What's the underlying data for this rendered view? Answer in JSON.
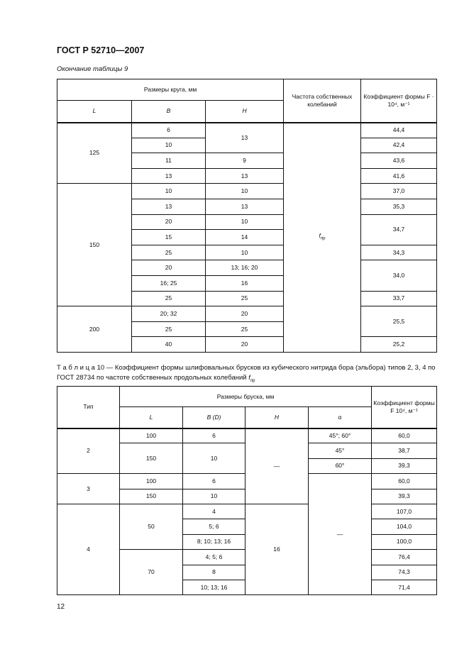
{
  "header": {
    "title": "ГОСТ Р 52710—2007"
  },
  "table9": {
    "caption": "Окончание таблицы 9",
    "header_rows": [
      [
        {
          "t": "Размеры круга, мм",
          "cs": 3
        },
        {
          "t": "Частота собственных колебаний",
          "rs": 2
        },
        {
          "t": "Коэффициент формы F · 10⁴, м⁻¹",
          "rs": 2
        }
      ],
      [
        {
          "t": "L",
          "it": true
        },
        {
          "t": "B",
          "it": true
        },
        {
          "t": "H",
          "it": true
        }
      ]
    ],
    "rows": [
      [
        {
          "t": "125",
          "rs": 4
        },
        {
          "t": "6"
        },
        {
          "t": "13",
          "rs": 2
        },
        {
          "t": "f",
          "sub": "пр",
          "it": true,
          "rs": 15
        },
        {
          "t": "44,4"
        }
      ],
      [
        {
          "t": "10"
        },
        {
          "t": "42,4"
        }
      ],
      [
        {
          "t": "11"
        },
        {
          "t": "9"
        },
        {
          "t": "43,6"
        }
      ],
      [
        {
          "t": "13"
        },
        {
          "t": "13"
        },
        {
          "t": "41,6"
        }
      ],
      [
        {
          "t": "150",
          "rs": 8
        },
        {
          "t": "10"
        },
        {
          "t": "10"
        },
        {
          "t": "37,0"
        }
      ],
      [
        {
          "t": "13"
        },
        {
          "t": "13"
        },
        {
          "t": "35,3"
        }
      ],
      [
        {
          "t": "20"
        },
        {
          "t": "10"
        },
        {
          "t": "34,7",
          "rs": 2
        }
      ],
      [
        {
          "t": "15"
        },
        {
          "t": "14"
        }
      ],
      [
        {
          "t": "25"
        },
        {
          "t": "10"
        },
        {
          "t": "34,3"
        }
      ],
      [
        {
          "t": "20"
        },
        {
          "t": "13; 16; 20"
        },
        {
          "t": "34,0",
          "rs": 2
        }
      ],
      [
        {
          "t": "16; 25"
        },
        {
          "t": "16"
        }
      ],
      [
        {
          "t": "25"
        },
        {
          "t": "25"
        },
        {
          "t": "33,7"
        }
      ],
      [
        {
          "t": "200",
          "rs": 3
        },
        {
          "t": "20; 32"
        },
        {
          "t": "20"
        },
        {
          "t": "25,5",
          "rs": 2
        }
      ],
      [
        {
          "t": "25"
        },
        {
          "t": "25"
        }
      ],
      [
        {
          "t": "40"
        },
        {
          "t": "20"
        },
        {
          "t": "25,2"
        }
      ]
    ]
  },
  "table10": {
    "caption": "Т а б л и ц а  10 — Коэффициент формы шлифовальных брусков из кубического нитрида бора (эльбора) типов 2, 3, 4 по ГОСТ 28734 по частоте собственных продольных колебаний ",
    "caption_symbol": "f",
    "caption_sub": "пр",
    "header_rows": [
      [
        {
          "t": "Тип",
          "rs": 2
        },
        {
          "t": "Размеры бруска, мм",
          "cs": 4
        },
        {
          "t": "Коэффициент формы F  10⁴, м⁻¹",
          "rs": 2
        }
      ],
      [
        {
          "t": "L",
          "it": true
        },
        {
          "t": "B (D)",
          "it": true
        },
        {
          "t": "H",
          "it": true
        },
        {
          "t": "α"
        }
      ]
    ],
    "rows": [
      [
        {
          "t": "2",
          "rs": 3
        },
        {
          "t": "100"
        },
        {
          "t": "6"
        },
        {
          "t": "—",
          "rs": 5
        },
        {
          "t": "45°; 60°"
        },
        {
          "t": "60,0"
        }
      ],
      [
        {
          "t": "150",
          "rs": 2
        },
        {
          "t": "10",
          "rs": 2
        },
        {
          "t": "45°"
        },
        {
          "t": "38,7"
        }
      ],
      [
        {
          "t": "60°"
        },
        {
          "t": "39,3"
        }
      ],
      [
        {
          "t": "3",
          "rs": 2
        },
        {
          "t": "100"
        },
        {
          "t": "6"
        },
        {
          "t": "—",
          "rs": 8
        },
        {
          "t": "60,0"
        }
      ],
      [
        {
          "t": "150"
        },
        {
          "t": "10"
        },
        {
          "t": "39,3"
        }
      ],
      [
        {
          "t": "4",
          "rs": 6
        },
        {
          "t": "50",
          "rs": 3
        },
        {
          "t": "4"
        },
        {
          "t": "16",
          "rs": 6
        },
        {
          "t": "107,0"
        }
      ],
      [
        {
          "t": "5; 6"
        },
        {
          "t": "104,0"
        }
      ],
      [
        {
          "t": "8; 10; 13; 16"
        },
        {
          "t": "100,0"
        }
      ],
      [
        {
          "t": "70",
          "rs": 3
        },
        {
          "t": "4; 5; 6"
        },
        {
          "t": "76,4"
        }
      ],
      [
        {
          "t": "8"
        },
        {
          "t": "74,3"
        }
      ],
      [
        {
          "t": "10; 13; 16"
        },
        {
          "t": "71,4"
        }
      ]
    ]
  },
  "footer": {
    "page_number": "12"
  }
}
